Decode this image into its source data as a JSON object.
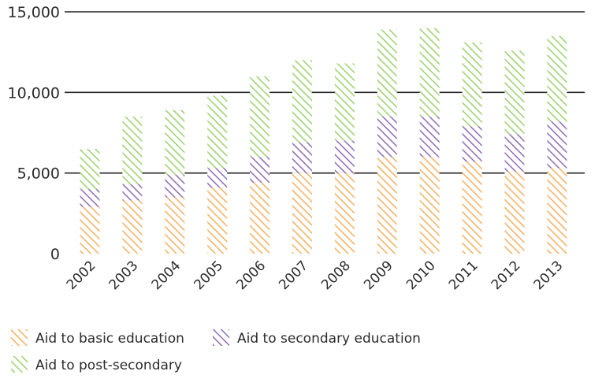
{
  "chart_data": {
    "type": "bar",
    "stacked": true,
    "categories": [
      "2002",
      "2003",
      "2004",
      "2005",
      "2006",
      "2007",
      "2008",
      "2009",
      "2010",
      "2011",
      "2012",
      "2013"
    ],
    "series": [
      {
        "name": "Aid to basic education",
        "color": "#f4b060",
        "values": [
          2900,
          3300,
          3500,
          4100,
          4400,
          5000,
          5000,
          6000,
          6000,
          5700,
          5100,
          5300
        ]
      },
      {
        "name": "Aid to secondary education",
        "color": "#8f6bb5",
        "values": [
          1100,
          1000,
          1400,
          1200,
          1600,
          1900,
          2000,
          2500,
          2500,
          2200,
          2300,
          2900
        ]
      },
      {
        "name": "Aid to post-secondary",
        "color": "#9ad16c",
        "values": [
          2500,
          4200,
          4000,
          4500,
          5000,
          5100,
          4800,
          5400,
          5500,
          5200,
          5200,
          5300
        ]
      }
    ],
    "y_ticks": [
      "0",
      "5,000",
      "10,000",
      "15,000"
    ],
    "y_tick_values": [
      0,
      5000,
      10000,
      15000
    ],
    "ylim": [
      0,
      15000
    ],
    "grid": true,
    "legend_position": "bottom"
  }
}
